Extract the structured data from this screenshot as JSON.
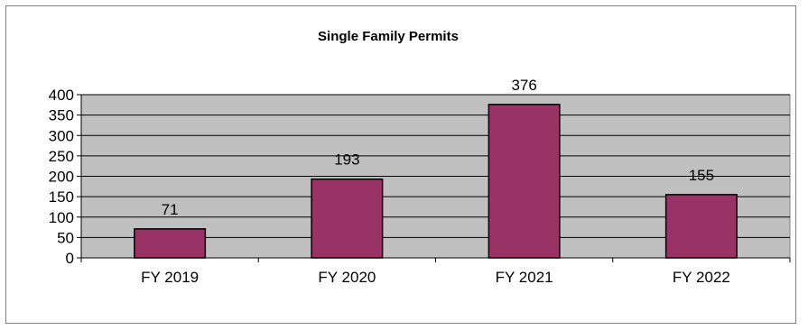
{
  "chart_data": {
    "type": "bar",
    "title": "Single Family Permits",
    "xlabel": "",
    "ylabel": "",
    "categories": [
      "FY 2019",
      "FY 2020",
      "FY 2021",
      "FY 2022"
    ],
    "values": [
      71,
      193,
      376,
      155
    ],
    "data_labels": [
      "71",
      "193",
      "376",
      "155"
    ],
    "ylim": [
      0,
      400
    ],
    "yticks": [
      0,
      50,
      100,
      150,
      200,
      250,
      300,
      350,
      400
    ],
    "grid": true,
    "legend": "none",
    "colors": {
      "bar_fill": "#993366",
      "bar_stroke": "#000000",
      "plot_background": "#c0c0c0",
      "gridline": "#000000"
    }
  }
}
